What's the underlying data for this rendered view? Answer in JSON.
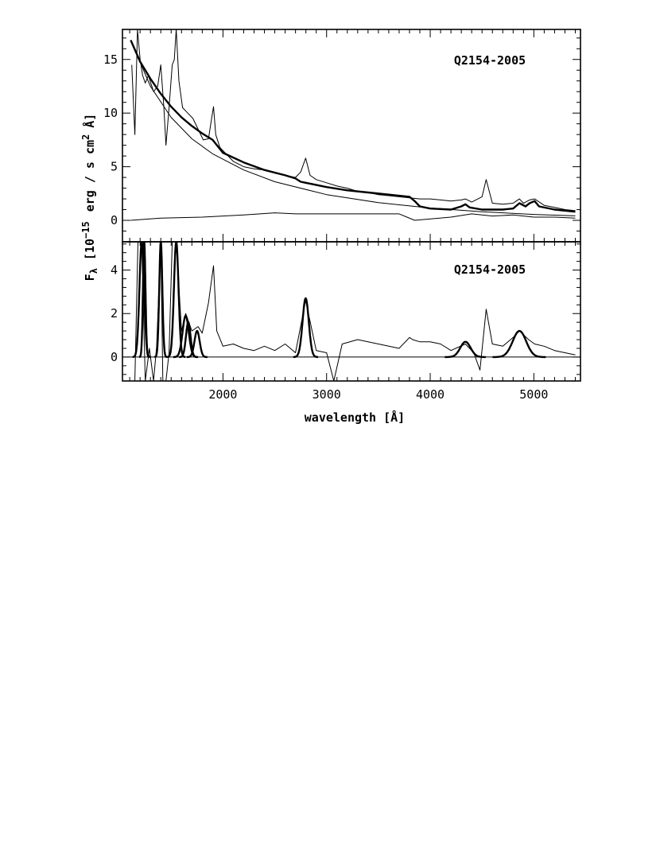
{
  "figure": {
    "xlabel": "wavelength [Å]",
    "ylabel": {
      "symbol": "F",
      "subscript": "λ",
      "bracket_open": "[10",
      "exponent": "−15",
      "unit_main": "erg / s cm",
      "unit_sup": "2",
      "unit_end": "Å]"
    },
    "x_ticks": [
      "2000",
      "3000",
      "4000",
      "5000"
    ]
  },
  "chart_data": [
    {
      "type": "line",
      "panel": "top",
      "annotation": "Q2154-2005",
      "xlim": [
        1030,
        5450
      ],
      "ylim": [
        -2,
        17.8
      ],
      "y_ticks": [
        "0",
        "5",
        "10",
        "15"
      ],
      "series": [
        {
          "style": "observed spectrum (thin)",
          "x": [
            1120,
            1150,
            1175,
            1200,
            1225,
            1250,
            1280,
            1330,
            1370,
            1400,
            1430,
            1450,
            1480,
            1510,
            1530,
            1549,
            1575,
            1610,
            1660,
            1710,
            1760,
            1810,
            1860,
            1890,
            1909,
            1930,
            1970,
            2100,
            2200,
            2300,
            2400,
            2500,
            2600,
            2700,
            2750,
            2798,
            2840,
            2900,
            3000,
            3100,
            3200,
            3300,
            3400,
            3500,
            3600,
            3700,
            3800,
            3900,
            4000,
            4100,
            4200,
            4300,
            4340,
            4400,
            4500,
            4540,
            4600,
            4700,
            4800,
            4861,
            4900,
            4959,
            5007,
            5100,
            5200,
            5300,
            5400
          ],
          "y": [
            14.5,
            8.0,
            17.8,
            15.0,
            13.5,
            12.8,
            13.5,
            12.0,
            12.5,
            14.5,
            10.5,
            7.0,
            10.5,
            14.5,
            15.0,
            17.8,
            13.0,
            10.5,
            10.0,
            9.5,
            8.5,
            7.5,
            7.6,
            9.5,
            10.6,
            8.0,
            6.8,
            5.5,
            5.0,
            4.8,
            4.7,
            4.4,
            4.2,
            4.0,
            4.5,
            5.8,
            4.2,
            3.8,
            3.5,
            3.2,
            3.0,
            2.7,
            2.6,
            2.4,
            2.3,
            2.2,
            2.1,
            2.0,
            2.0,
            1.9,
            1.8,
            1.9,
            2.0,
            1.7,
            2.2,
            3.8,
            1.6,
            1.5,
            1.6,
            2.0,
            1.6,
            1.9,
            2.0,
            1.4,
            1.2,
            1.0,
            0.9
          ]
        },
        {
          "style": "total model (thick)",
          "x": [
            1110,
            1200,
            1300,
            1400,
            1500,
            1600,
            1700,
            1800,
            1900,
            2000,
            2200,
            2400,
            2600,
            2700,
            2750,
            2798,
            2850,
            3000,
            3200,
            3400,
            3600,
            3800,
            3850,
            3900,
            4000,
            4200,
            4300,
            4340,
            4380,
            4500,
            4700,
            4800,
            4861,
            4920,
            4959,
            5007,
            5050,
            5200,
            5400
          ],
          "y": [
            16.8,
            14.8,
            13.2,
            11.8,
            10.6,
            9.6,
            8.8,
            8.1,
            7.5,
            6.3,
            5.4,
            4.7,
            4.2,
            3.9,
            3.6,
            3.5,
            3.4,
            3.1,
            2.8,
            2.6,
            2.4,
            2.2,
            1.8,
            1.3,
            1.1,
            1.0,
            1.3,
            1.5,
            1.2,
            1.0,
            1.0,
            1.1,
            1.6,
            1.3,
            1.6,
            1.8,
            1.3,
            1.0,
            0.8
          ]
        },
        {
          "style": "power-law continuum (thin)",
          "x": [
            1110,
            1300,
            1500,
            1700,
            1900,
            2200,
            2500,
            3000,
            3500,
            4000,
            4500,
            5000,
            5400
          ],
          "y": [
            16.8,
            12.5,
            9.6,
            7.6,
            6.2,
            4.7,
            3.6,
            2.4,
            1.65,
            1.15,
            0.8,
            0.55,
            0.42
          ]
        },
        {
          "style": "Fe II template (thin)",
          "x": [
            1110,
            1400,
            1800,
            2200,
            2500,
            2700,
            3000,
            3300,
            3700,
            3850,
            4200,
            4400,
            4600,
            4800,
            5000,
            5200,
            5400
          ],
          "y": [
            0.0,
            0.2,
            0.3,
            0.5,
            0.7,
            0.6,
            0.6,
            0.6,
            0.6,
            0.0,
            0.3,
            0.6,
            0.4,
            0.5,
            0.3,
            0.3,
            0.2
          ]
        }
      ]
    },
    {
      "type": "line",
      "panel": "bottom",
      "annotation": "Q2154-2005",
      "xlim": [
        1030,
        5450
      ],
      "ylim": [
        -1.1,
        5.3
      ],
      "y_ticks": [
        "0",
        "2",
        "4"
      ],
      "series": [
        {
          "style": "residual emission spectrum (thin)",
          "x": [
            1150,
            1180,
            1216,
            1250,
            1290,
            1330,
            1360,
            1400,
            1420,
            1450,
            1480,
            1510,
            1549,
            1600,
            1640,
            1700,
            1760,
            1800,
            1860,
            1909,
            1940,
            2000,
            2100,
            2200,
            2300,
            2400,
            2500,
            2600,
            2700,
            2798,
            2900,
            3000,
            3070,
            3150,
            3300,
            3500,
            3700,
            3800,
            3830,
            3900,
            4000,
            4100,
            4200,
            4340,
            4420,
            4480,
            4540,
            4600,
            4700,
            4800,
            4861,
            4950,
            5007,
            5100,
            5200,
            5300,
            5400
          ],
          "y": [
            -1.1,
            5.3,
            5.3,
            -1.1,
            0.4,
            -1.1,
            0.5,
            5.3,
            -1.1,
            -1.1,
            0.2,
            5.3,
            5.3,
            1.2,
            2.0,
            1.2,
            1.4,
            1.1,
            2.5,
            4.2,
            1.2,
            0.5,
            0.6,
            0.4,
            0.3,
            0.5,
            0.3,
            0.6,
            0.2,
            2.6,
            0.3,
            0.2,
            -1.1,
            0.6,
            0.8,
            0.6,
            0.4,
            0.9,
            0.8,
            0.7,
            0.7,
            0.6,
            0.3,
            0.6,
            0.2,
            -0.6,
            2.2,
            0.6,
            0.5,
            0.9,
            1.2,
            0.8,
            0.6,
            0.5,
            0.3,
            0.2,
            0.1
          ]
        },
        {
          "style": "fitted emission-line profiles (thick)",
          "lines": [
            {
              "center": 1216,
              "peak": 5.3,
              "width": 22
            },
            {
              "center": 1240,
              "peak": 5.3,
              "width": 12
            },
            {
              "center": 1400,
              "peak": 5.3,
              "width": 15
            },
            {
              "center": 1549,
              "peak": 5.3,
              "width": 22
            },
            {
              "center": 1640,
              "peak": 1.9,
              "width": 30
            },
            {
              "center": 1665,
              "peak": 1.6,
              "width": 22
            },
            {
              "center": 1750,
              "peak": 1.2,
              "width": 25
            },
            {
              "center": 2798,
              "peak": 2.7,
              "width": 30
            },
            {
              "center": 4340,
              "peak": 0.7,
              "width": 50
            },
            {
              "center": 4861,
              "peak": 1.2,
              "width": 65
            }
          ]
        },
        {
          "style": "zero line (thin)",
          "x": [
            1030,
            5450
          ],
          "y": [
            0,
            0
          ]
        }
      ]
    }
  ]
}
